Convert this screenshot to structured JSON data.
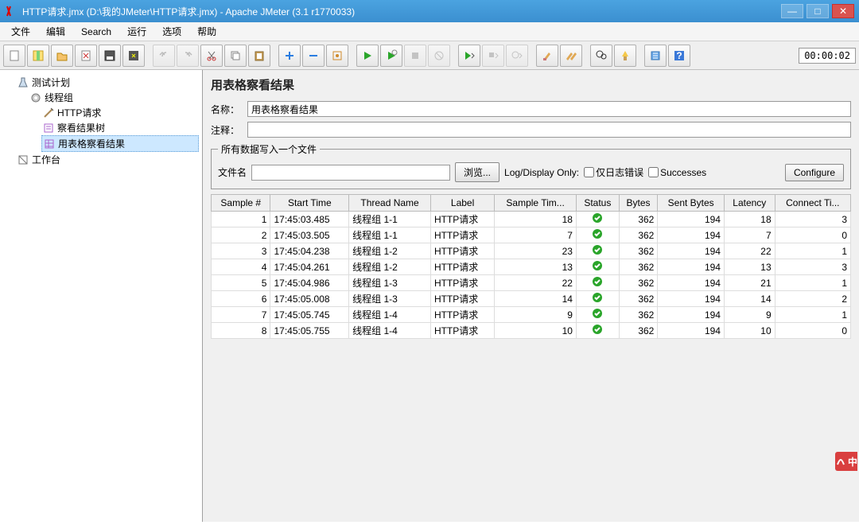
{
  "window": {
    "title": "HTTP请求.jmx (D:\\我的JMeter\\HTTP请求.jmx) - Apache JMeter (3.1 r1770033)"
  },
  "menu": [
    "文件",
    "编辑",
    "Search",
    "运行",
    "选项",
    "帮助"
  ],
  "timer": "00:00:02",
  "tree": {
    "root": "测试计划",
    "group": "线程组",
    "children": [
      "HTTP请求",
      "察看结果树",
      "用表格察看结果"
    ],
    "selected_index": 2,
    "workbench": "工作台"
  },
  "panel": {
    "title": "用表格察看结果",
    "name_label": "名称：",
    "name_value": "用表格察看结果",
    "comment_label": "注释：",
    "comment_value": "",
    "fieldset_legend": "所有数据写入一个文件",
    "file_label": "文件名",
    "file_value": "",
    "browse_label": "浏览...",
    "logdisplay_label": "Log/Display Only:",
    "only_errors_label": "仅日志错误",
    "successes_label": "Successes",
    "configure_label": "Configure"
  },
  "table": {
    "columns": [
      "Sample #",
      "Start Time",
      "Thread Name",
      "Label",
      "Sample Tim...",
      "Status",
      "Bytes",
      "Sent Bytes",
      "Latency",
      "Connect Ti..."
    ],
    "rows": [
      {
        "n": 1,
        "time": "17:45:03.485",
        "thread": "线程组 1-1",
        "label": "HTTP请求",
        "st": 18,
        "bytes": 362,
        "sent": 194,
        "lat": 18,
        "ct": 3
      },
      {
        "n": 2,
        "time": "17:45:03.505",
        "thread": "线程组 1-1",
        "label": "HTTP请求",
        "st": 7,
        "bytes": 362,
        "sent": 194,
        "lat": 7,
        "ct": 0
      },
      {
        "n": 3,
        "time": "17:45:04.238",
        "thread": "线程组 1-2",
        "label": "HTTP请求",
        "st": 23,
        "bytes": 362,
        "sent": 194,
        "lat": 22,
        "ct": 1
      },
      {
        "n": 4,
        "time": "17:45:04.261",
        "thread": "线程组 1-2",
        "label": "HTTP请求",
        "st": 13,
        "bytes": 362,
        "sent": 194,
        "lat": 13,
        "ct": 3
      },
      {
        "n": 5,
        "time": "17:45:04.986",
        "thread": "线程组 1-3",
        "label": "HTTP请求",
        "st": 22,
        "bytes": 362,
        "sent": 194,
        "lat": 21,
        "ct": 1
      },
      {
        "n": 6,
        "time": "17:45:05.008",
        "thread": "线程组 1-3",
        "label": "HTTP请求",
        "st": 14,
        "bytes": 362,
        "sent": 194,
        "lat": 14,
        "ct": 2
      },
      {
        "n": 7,
        "time": "17:45:05.745",
        "thread": "线程组 1-4",
        "label": "HTTP请求",
        "st": 9,
        "bytes": 362,
        "sent": 194,
        "lat": 9,
        "ct": 1
      },
      {
        "n": 8,
        "time": "17:45:05.755",
        "thread": "线程组 1-4",
        "label": "HTTP请求",
        "st": 10,
        "bytes": 362,
        "sent": 194,
        "lat": 10,
        "ct": 0
      }
    ]
  },
  "ime": "中",
  "colors": {
    "titlebar": "#3b8fd0",
    "selection": "#cde8ff",
    "status_ok": "#2aa52a"
  }
}
